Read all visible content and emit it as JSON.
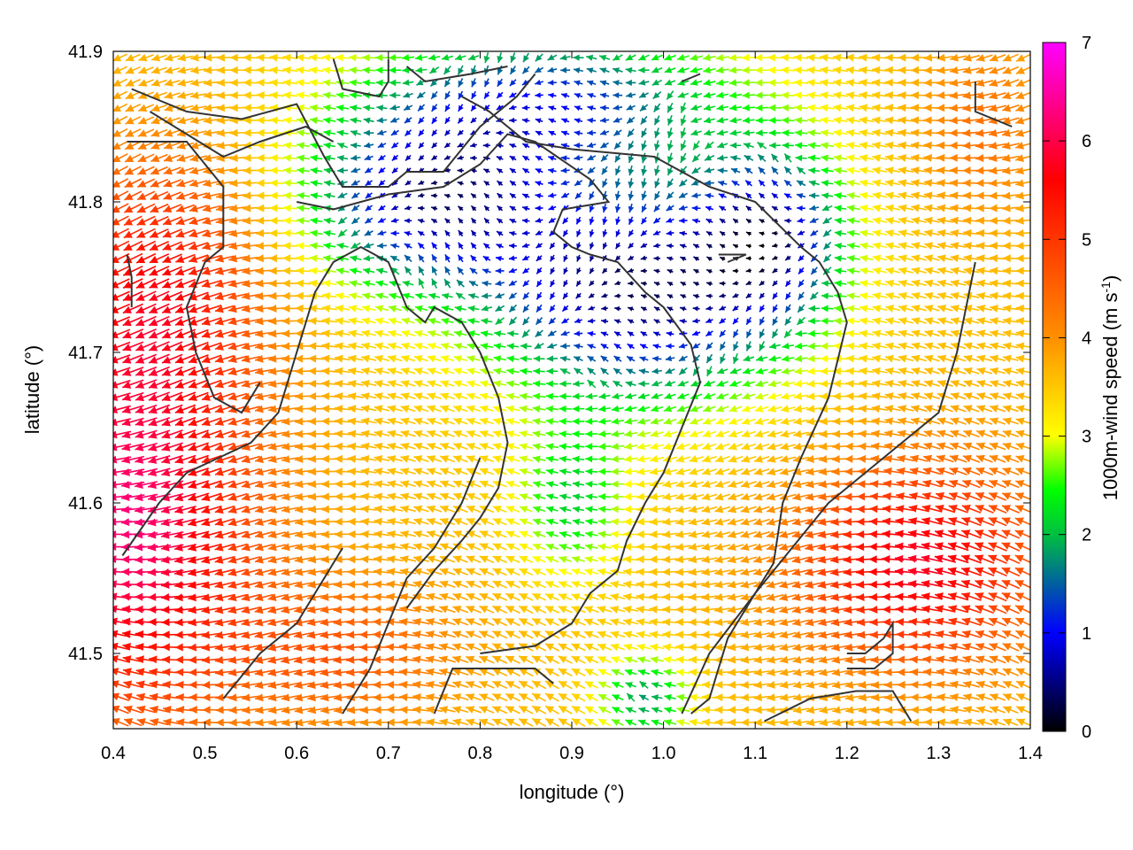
{
  "chart_data": {
    "type": "vector-field",
    "xlabel": "longitude (°)",
    "ylabel": "latitude (°)",
    "colorbar_label": "1000m-wind speed (m s",
    "colorbar_label_sup": "-1",
    "colorbar_label_end": ")",
    "xlim": [
      0.4,
      1.4
    ],
    "ylim": [
      41.45,
      41.9
    ],
    "x_ticks": [
      "0.4",
      "0.5",
      "0.6",
      "0.7",
      "0.8",
      "0.9",
      "1.0",
      "1.1",
      "1.2",
      "1.3",
      "1.4"
    ],
    "y_ticks": [
      "41.5",
      "41.6",
      "41.7",
      "41.8",
      "41.9"
    ],
    "colorbar_range": [
      0,
      7
    ],
    "colorbar_ticks": [
      "0",
      "1",
      "2",
      "3",
      "4",
      "5",
      "6",
      "7"
    ],
    "palette": [
      "#000000",
      "#0000ff",
      "#00ff00",
      "#ffff00",
      "#ff8000",
      "#ff0000",
      "#ff00ff"
    ],
    "contour_color": "#333333",
    "wind_field_note": "dominant easterly flow; strongest (6-7 m/s) over west and southeast, weakest (<1 m/s) in central basin"
  }
}
